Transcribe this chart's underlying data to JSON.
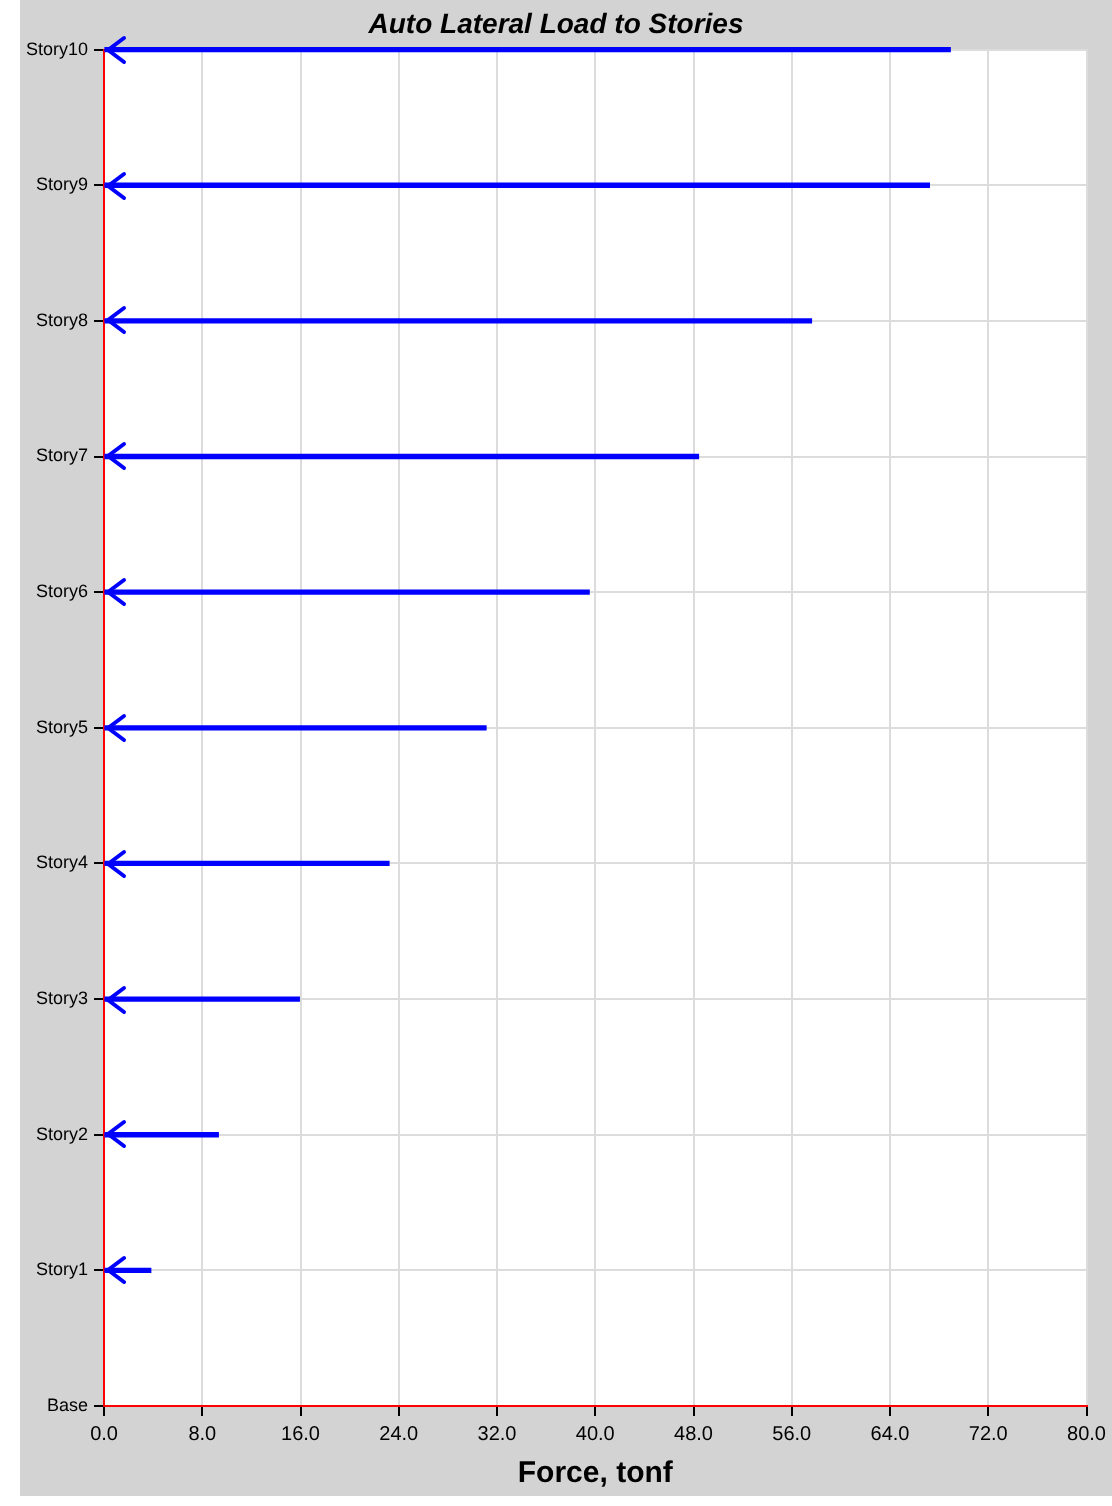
{
  "chart_data": {
    "type": "bar",
    "orientation": "horizontal",
    "title": "Auto Lateral Load to Stories",
    "xlabel": "Force, tonf",
    "categories": [
      "Story10",
      "Story9",
      "Story8",
      "Story7",
      "Story6",
      "Story5",
      "Story4",
      "Story3",
      "Story2",
      "Story1",
      "Base"
    ],
    "values": [
      68.9,
      67.2,
      57.6,
      48.4,
      39.5,
      31.1,
      23.2,
      15.9,
      9.3,
      3.8,
      null
    ],
    "color": "#0000ff",
    "xlim": [
      0,
      80
    ],
    "xticks": [
      {
        "value": 0,
        "label": "0.0"
      },
      {
        "value": 8,
        "label": "8.0"
      },
      {
        "value": 16,
        "label": "16.0"
      },
      {
        "value": 24,
        "label": "24.0"
      },
      {
        "value": 32,
        "label": "32.0"
      },
      {
        "value": 40,
        "label": "40.0"
      },
      {
        "value": 48,
        "label": "48.0"
      },
      {
        "value": 56,
        "label": "56.0"
      },
      {
        "value": 64,
        "label": "64.0"
      },
      {
        "value": 72,
        "label": "72.0"
      },
      {
        "value": 80,
        "label": "80.0"
      }
    ],
    "grid": true
  }
}
